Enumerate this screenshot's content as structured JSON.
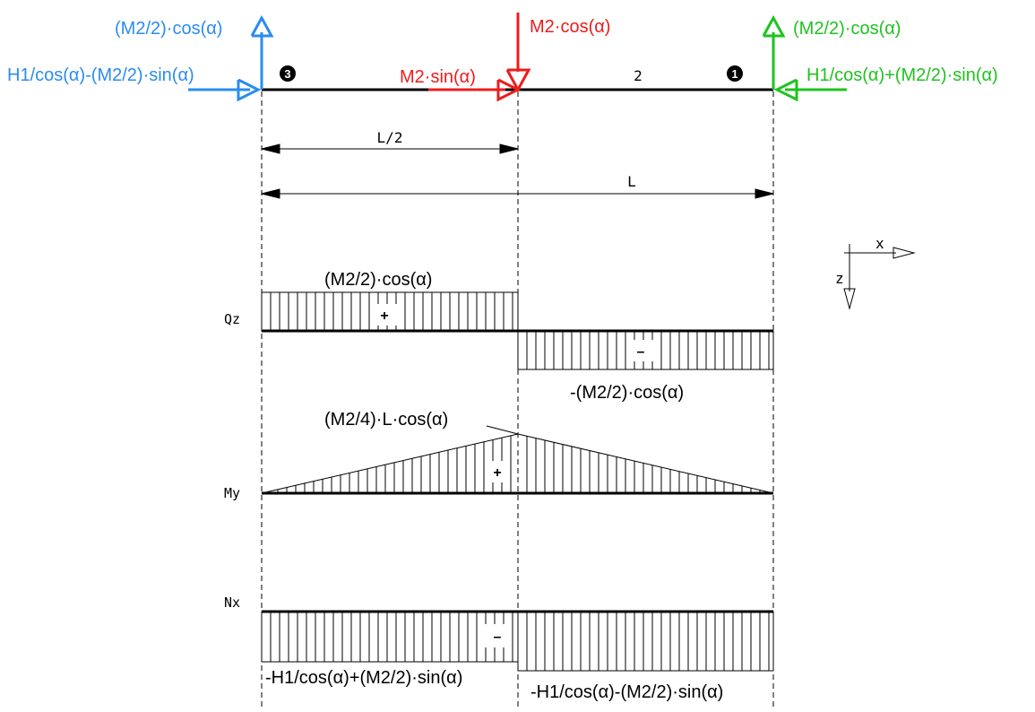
{
  "colors": {
    "support_left": "#2a8cf0",
    "center_load": "#ee1c1c",
    "support_right": "#1ec31e",
    "ink": "#000000"
  },
  "beam": {
    "node_left_label": "3",
    "node_right_label": "1",
    "element_label": "2"
  },
  "loads": {
    "left_vertical": "(M2/2)·cos(α)",
    "left_horizontal": "H1/cos(α)-(M2/2)·sin(α)",
    "center_vertical": "M2·cos(α)",
    "center_horizontal": "M2·sin(α)",
    "right_vertical": "(M2/2)·cos(α)",
    "right_horizontal": "H1/cos(α)+(M2/2)·sin(α)"
  },
  "dimensions": {
    "half_span": "L/2",
    "full_span": "L"
  },
  "axes": {
    "x_label": "x",
    "z_label": "z"
  },
  "diagrams": {
    "qz": {
      "name": "Qz",
      "left_value": "(M2/2)·cos(α)",
      "left_sign": "+",
      "right_value": "-(M2/2)·cos(α)",
      "right_sign": "–"
    },
    "my": {
      "name": "My",
      "peak_value": "(M2/4)·L·cos(α)",
      "sign": "+"
    },
    "nx": {
      "name": "Nx",
      "left_value": "-H1/cos(α)+(M2/2)·sin(α)",
      "right_value": "-H1/cos(α)-(M2/2)·sin(α)",
      "sign": "–"
    }
  }
}
